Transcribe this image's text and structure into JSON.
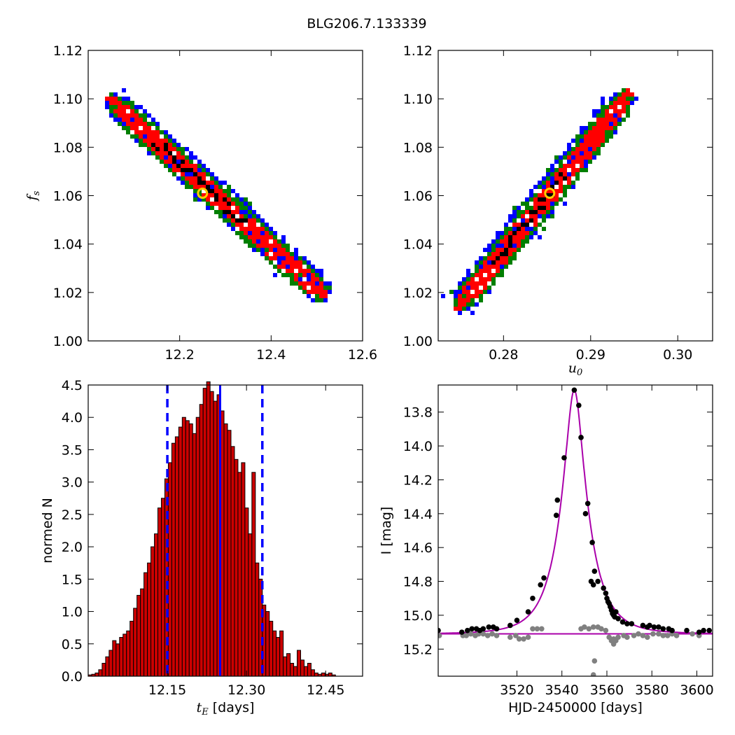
{
  "figure_title": "BLG206.7.133339",
  "colors": {
    "blue": "#0000ff",
    "green": "#007f00",
    "red": "#ff0000",
    "black": "#000000",
    "bar_fill": "#cc0000",
    "marker_ring": "#ffcc00",
    "model_curve": "#aa00aa",
    "baseline_points": "#808080"
  },
  "chart_data": [
    {
      "panel": "top-left",
      "type": "heatmap",
      "description_in_data_units": "2D posterior density of f_s vs t_E",
      "xlabel": "",
      "ylabel": "f_s",
      "xlim": [
        12.0,
        12.6
      ],
      "ylim": [
        1.0,
        1.12
      ],
      "xticks": [
        "12.2",
        "12.4",
        "12.6"
      ],
      "yticks": [
        "1.00",
        "1.02",
        "1.04",
        "1.06",
        "1.08",
        "1.10",
        "1.12"
      ],
      "ridge": {
        "x0": 12.04,
        "y0": 1.101,
        "x1": 12.52,
        "y1": 1.018
      },
      "best_fit": {
        "x": 12.25,
        "y": 1.061
      }
    },
    {
      "panel": "top-right",
      "type": "heatmap",
      "description_in_data_units": "2D posterior density of f_s vs u_0",
      "xlabel": "u_0",
      "ylabel": "",
      "xlim": [
        0.2725,
        0.304
      ],
      "ylim": [
        1.0,
        1.12
      ],
      "xticks": [
        "0.28",
        "0.29",
        "0.30"
      ],
      "yticks": [
        "1.00",
        "1.02",
        "1.04",
        "1.06",
        "1.08",
        "1.10",
        "1.12"
      ],
      "ridge": {
        "x0": 0.2745,
        "y0": 1.014,
        "x1": 0.2945,
        "y1": 1.104
      },
      "best_fit": {
        "x": 0.2853,
        "y": 1.061
      }
    },
    {
      "panel": "bottom-left",
      "type": "bar",
      "xlabel": "t_E [days]",
      "ylabel": "normed N",
      "xlim": [
        12.0,
        12.52
      ],
      "ylim": [
        0.0,
        4.5
      ],
      "xticks": [
        "12.15",
        "12.30",
        "12.45"
      ],
      "yticks": [
        "0.0",
        "0.5",
        "1.0",
        "1.5",
        "2.0",
        "2.5",
        "3.0",
        "3.5",
        "4.0",
        "4.5"
      ],
      "bin_start": 12.0,
      "bin_width": 0.0066,
      "values": [
        0.02,
        0.03,
        0.05,
        0.1,
        0.2,
        0.3,
        0.4,
        0.55,
        0.5,
        0.6,
        0.65,
        0.7,
        0.85,
        1.05,
        1.25,
        1.35,
        1.6,
        1.75,
        2.0,
        2.2,
        2.6,
        2.75,
        3.05,
        3.3,
        3.6,
        3.7,
        3.85,
        4.0,
        3.95,
        3.9,
        3.75,
        4.0,
        4.2,
        4.45,
        4.55,
        4.4,
        4.25,
        4.35,
        4.1,
        3.9,
        3.8,
        3.55,
        3.35,
        3.15,
        3.3,
        2.6,
        2.2,
        3.15,
        1.75,
        1.5,
        1.1,
        1.0,
        0.85,
        0.7,
        0.6,
        0.7,
        0.3,
        0.35,
        0.2,
        0.15,
        0.4,
        0.25,
        0.15,
        0.2,
        0.1,
        0.05,
        0.03,
        0.05,
        0.03,
        0.05,
        0.02
      ],
      "median": 12.25,
      "interval": [
        12.15,
        12.33
      ]
    },
    {
      "panel": "bottom-right",
      "type": "scatter",
      "xlabel": "HJD-2450000 [days]",
      "ylabel": "I [mag]",
      "xlim": [
        3485,
        3607
      ],
      "ylim": [
        15.36,
        13.64
      ],
      "y_inverted": true,
      "xticks": [
        "3520",
        "3540",
        "3560",
        "3580",
        "3600"
      ],
      "yticks": [
        "13.8",
        "14.0",
        "14.2",
        "14.4",
        "14.6",
        "14.8",
        "15.0",
        "15.2"
      ],
      "model": {
        "t0": 3545.5,
        "tE": 12.25,
        "u0": 0.2853,
        "fs": 1.061,
        "baseline_mag": 15.11,
        "baseline_line": 15.11
      },
      "data_points": [
        {
          "x": 3485.0,
          "y": 15.09
        },
        {
          "x": 3495.5,
          "y": 15.1
        },
        {
          "x": 3498.0,
          "y": 15.09
        },
        {
          "x": 3500.0,
          "y": 15.08
        },
        {
          "x": 3502.0,
          "y": 15.08
        },
        {
          "x": 3503.5,
          "y": 15.09
        },
        {
          "x": 3505.0,
          "y": 15.08
        },
        {
          "x": 3507.5,
          "y": 15.07
        },
        {
          "x": 3509.5,
          "y": 15.07
        },
        {
          "x": 3511.0,
          "y": 15.08
        },
        {
          "x": 3517.0,
          "y": 15.06
        },
        {
          "x": 3520.0,
          "y": 15.03
        },
        {
          "x": 3525.0,
          "y": 14.98
        },
        {
          "x": 3527.0,
          "y": 14.9
        },
        {
          "x": 3530.5,
          "y": 14.82
        },
        {
          "x": 3532.0,
          "y": 14.78
        },
        {
          "x": 3537.5,
          "y": 14.41
        },
        {
          "x": 3538.0,
          "y": 14.32
        },
        {
          "x": 3541.0,
          "y": 14.07
        },
        {
          "x": 3545.5,
          "y": 13.67
        },
        {
          "x": 3547.5,
          "y": 13.76
        },
        {
          "x": 3548.5,
          "y": 13.95
        },
        {
          "x": 3550.5,
          "y": 14.4
        },
        {
          "x": 3551.5,
          "y": 14.34
        },
        {
          "x": 3553.5,
          "y": 14.57
        },
        {
          "x": 3554.5,
          "y": 14.74
        },
        {
          "x": 3556.0,
          "y": 14.8
        },
        {
          "x": 3553.0,
          "y": 14.8
        },
        {
          "x": 3554.0,
          "y": 14.82
        },
        {
          "x": 3558.5,
          "y": 14.84
        },
        {
          "x": 3559.5,
          "y": 14.87
        },
        {
          "x": 3560.0,
          "y": 14.9
        },
        {
          "x": 3560.5,
          "y": 14.92
        },
        {
          "x": 3561.0,
          "y": 14.93
        },
        {
          "x": 3561.5,
          "y": 14.95
        },
        {
          "x": 3562.0,
          "y": 14.97
        },
        {
          "x": 3562.5,
          "y": 14.99
        },
        {
          "x": 3563.0,
          "y": 15.0
        },
        {
          "x": 3563.5,
          "y": 15.01
        },
        {
          "x": 3564.0,
          "y": 14.98
        },
        {
          "x": 3565.0,
          "y": 15.02
        },
        {
          "x": 3567.0,
          "y": 15.04
        },
        {
          "x": 3569.0,
          "y": 15.05
        },
        {
          "x": 3571.0,
          "y": 15.05
        },
        {
          "x": 3576.0,
          "y": 15.06
        },
        {
          "x": 3578.0,
          "y": 15.07
        },
        {
          "x": 3579.0,
          "y": 15.06
        },
        {
          "x": 3581.0,
          "y": 15.07
        },
        {
          "x": 3583.0,
          "y": 15.07
        },
        {
          "x": 3585.0,
          "y": 15.08
        },
        {
          "x": 3587.5,
          "y": 15.08
        },
        {
          "x": 3589.0,
          "y": 15.09
        },
        {
          "x": 3595.5,
          "y": 15.09
        },
        {
          "x": 3601.0,
          "y": 15.1
        },
        {
          "x": 3603.0,
          "y": 15.09
        },
        {
          "x": 3605.5,
          "y": 15.09
        }
      ],
      "baseline_points": [
        {
          "x": 3485.5,
          "y": 15.12
        },
        {
          "x": 3496.0,
          "y": 15.12
        },
        {
          "x": 3497.5,
          "y": 15.12
        },
        {
          "x": 3499.5,
          "y": 15.11
        },
        {
          "x": 3501.5,
          "y": 15.12
        },
        {
          "x": 3503.0,
          "y": 15.11
        },
        {
          "x": 3505.0,
          "y": 15.11
        },
        {
          "x": 3507.0,
          "y": 15.12
        },
        {
          "x": 3509.0,
          "y": 15.11
        },
        {
          "x": 3511.0,
          "y": 15.12
        },
        {
          "x": 3517.0,
          "y": 15.13
        },
        {
          "x": 3519.5,
          "y": 15.12
        },
        {
          "x": 3521.0,
          "y": 15.14
        },
        {
          "x": 3523.0,
          "y": 15.14
        },
        {
          "x": 3525.0,
          "y": 15.13
        },
        {
          "x": 3527.0,
          "y": 15.08
        },
        {
          "x": 3529.0,
          "y": 15.08
        },
        {
          "x": 3531.0,
          "y": 15.08
        },
        {
          "x": 3548.5,
          "y": 15.08
        },
        {
          "x": 3550.0,
          "y": 15.07
        },
        {
          "x": 3552.0,
          "y": 15.08
        },
        {
          "x": 3554.0,
          "y": 15.07
        },
        {
          "x": 3554.5,
          "y": 15.27
        },
        {
          "x": 3554.0,
          "y": 15.37
        },
        {
          "x": 3556.0,
          "y": 15.07
        },
        {
          "x": 3557.5,
          "y": 15.08
        },
        {
          "x": 3559.5,
          "y": 15.09
        },
        {
          "x": 3561.0,
          "y": 15.13
        },
        {
          "x": 3562.0,
          "y": 15.15
        },
        {
          "x": 3563.0,
          "y": 15.14
        },
        {
          "x": 3563.0,
          "y": 15.17
        },
        {
          "x": 3564.0,
          "y": 15.15
        },
        {
          "x": 3565.0,
          "y": 15.13
        },
        {
          "x": 3567.5,
          "y": 15.12
        },
        {
          "x": 3569.0,
          "y": 15.13
        },
        {
          "x": 3572.0,
          "y": 15.12
        },
        {
          "x": 3574.0,
          "y": 15.11
        },
        {
          "x": 3576.0,
          "y": 15.12
        },
        {
          "x": 3578.0,
          "y": 15.13
        },
        {
          "x": 3580.5,
          "y": 15.11
        },
        {
          "x": 3583.0,
          "y": 15.11
        },
        {
          "x": 3585.0,
          "y": 15.12
        },
        {
          "x": 3587.0,
          "y": 15.12
        },
        {
          "x": 3589.0,
          "y": 15.11
        },
        {
          "x": 3591.0,
          "y": 15.12
        },
        {
          "x": 3598.0,
          "y": 15.11
        },
        {
          "x": 3601.0,
          "y": 15.12
        }
      ]
    }
  ]
}
